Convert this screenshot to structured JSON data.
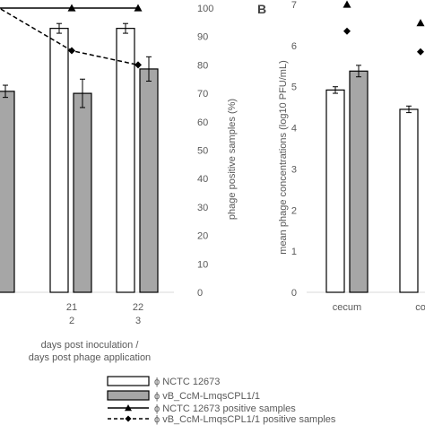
{
  "panel_b_label": "B",
  "chart_data": [
    {
      "type": "bar",
      "panel": "A",
      "x_ticks": [
        {
          "day": "",
          "phage_day": ""
        },
        {
          "day": "21",
          "phage_day": "2"
        },
        {
          "day": "22",
          "phage_day": "3"
        }
      ],
      "xlabel_line1": "days post inoculation /",
      "xlabel_line2": "days post phage application",
      "y2label": "phage positive samples (%)",
      "y2lim": [
        0,
        100
      ],
      "y2_ticks": [
        "0",
        "10",
        "20",
        "30",
        "40",
        "50",
        "60",
        "70",
        "80",
        "90",
        "100"
      ],
      "series": [
        {
          "name": "ϕ NCTC 12673",
          "kind": "bar",
          "color": "#ffffff",
          "values": [
            null,
            6.5,
            6.5
          ],
          "err": [
            null,
            0.12,
            0.12
          ]
        },
        {
          "name": "ϕ vB_CcM-LmqsCPL1/1",
          "kind": "bar",
          "color": "#a6a6a6",
          "values": [
            4.95,
            4.9,
            5.5
          ],
          "err": [
            0.15,
            0.35,
            0.3
          ]
        },
        {
          "name": "ϕ NCTC 12673 positive samples",
          "kind": "line",
          "marker": "triangle",
          "axis": "y2",
          "values": [
            100,
            100,
            100
          ]
        },
        {
          "name": "ϕ vB_CcM-LmqsCPL1/1 positive samples",
          "kind": "line",
          "marker": "diamond",
          "dashed": true,
          "axis": "y2",
          "values": [
            100,
            85,
            80
          ]
        }
      ]
    },
    {
      "type": "bar",
      "panel": "B",
      "categories": [
        "cecum",
        "co"
      ],
      "ylabel": "mean phage concentrations (log10 PFU/mL)",
      "ylim": [
        0,
        7
      ],
      "y_ticks": [
        "0",
        "1",
        "2",
        "3",
        "4",
        "5",
        "6",
        "7"
      ],
      "series": [
        {
          "name": "ϕ NCTC 12673",
          "kind": "bar",
          "color": "#ffffff",
          "values": [
            4.92,
            4.45
          ],
          "err": [
            0.08,
            0.08
          ]
        },
        {
          "name": "ϕ vB_CcM-LmqsCPL1/1",
          "kind": "bar",
          "color": "#a6a6a6",
          "values": [
            5.38,
            null
          ],
          "err": [
            0.14,
            null
          ]
        },
        {
          "name": "ϕ NCTC 12673 positive samples",
          "kind": "marker",
          "marker": "triangle",
          "values": [
            7.0,
            6.55
          ]
        },
        {
          "name": "ϕ vB_CcM-LmqsCPL1/1 positive samples",
          "kind": "marker",
          "marker": "diamond",
          "values": [
            6.35,
            5.85
          ]
        }
      ]
    }
  ],
  "legend": [
    {
      "label": "ϕ NCTC 12673",
      "kind": "bar",
      "color": "#ffffff"
    },
    {
      "label": "ϕ vB_CcM-LmqsCPL1/1",
      "kind": "bar",
      "color": "#a6a6a6"
    },
    {
      "label": "ϕ NCTC 12673 positive samples",
      "kind": "line",
      "marker": "triangle"
    },
    {
      "label": "ϕ vB_CcM-LmqsCPL1/1 positive samples",
      "kind": "line",
      "marker": "diamond",
      "dashed": true
    }
  ]
}
